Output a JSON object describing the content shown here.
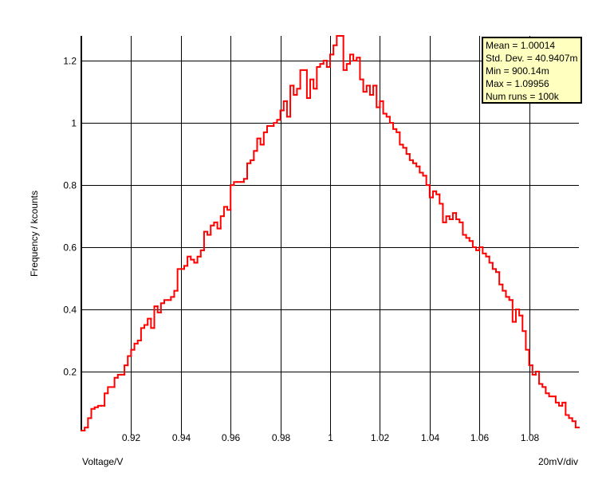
{
  "chart_data": {
    "type": "histogram",
    "xlabel": "Voltage/V",
    "ylabel": "Frequency / kcounts",
    "x_scale_note": "20mV/div",
    "xlim": [
      0.9,
      1.1
    ],
    "ylim": [
      0.01,
      1.28
    ],
    "grid": true,
    "x_ticks": [
      "0.92",
      "0.94",
      "0.96",
      "0.98",
      "1",
      "1.02",
      "1.04",
      "1.06",
      "1.08"
    ],
    "x_tick_values": [
      0.92,
      0.94,
      0.96,
      0.98,
      1.0,
      1.02,
      1.04,
      1.06,
      1.08
    ],
    "y_ticks": [
      "0.2",
      "0.4",
      "0.6",
      "0.8",
      "1",
      "1.2"
    ],
    "y_tick_values": [
      0.2,
      0.4,
      0.6,
      0.8,
      1.0,
      1.2
    ],
    "series_color": "#ff0000",
    "bin_start": 0.9,
    "bin_end": 1.1,
    "values": [
      0.01,
      0.02,
      0.05,
      0.08,
      0.085,
      0.09,
      0.09,
      0.13,
      0.15,
      0.15,
      0.18,
      0.19,
      0.19,
      0.22,
      0.25,
      0.27,
      0.29,
      0.3,
      0.34,
      0.35,
      0.37,
      0.34,
      0.41,
      0.39,
      0.42,
      0.43,
      0.43,
      0.44,
      0.46,
      0.53,
      0.53,
      0.54,
      0.57,
      0.56,
      0.55,
      0.57,
      0.59,
      0.65,
      0.64,
      0.67,
      0.68,
      0.66,
      0.7,
      0.73,
      0.72,
      0.8,
      0.81,
      0.81,
      0.81,
      0.82,
      0.87,
      0.88,
      0.91,
      0.95,
      0.93,
      0.97,
      0.99,
      0.99,
      1.0,
      1.01,
      1.04,
      1.07,
      1.02,
      1.12,
      1.09,
      1.11,
      1.17,
      1.17,
      1.08,
      1.14,
      1.11,
      1.18,
      1.19,
      1.2,
      1.18,
      1.22,
      1.25,
      1.28,
      1.28,
      1.17,
      1.19,
      1.22,
      1.2,
      1.21,
      1.14,
      1.1,
      1.12,
      1.09,
      1.12,
      1.05,
      1.07,
      1.03,
      1.02,
      1.0,
      0.98,
      0.97,
      0.93,
      0.92,
      0.9,
      0.88,
      0.87,
      0.86,
      0.84,
      0.83,
      0.8,
      0.76,
      0.78,
      0.77,
      0.74,
      0.68,
      0.7,
      0.69,
      0.71,
      0.69,
      0.68,
      0.64,
      0.63,
      0.62,
      0.6,
      0.59,
      0.6,
      0.58,
      0.57,
      0.55,
      0.53,
      0.52,
      0.48,
      0.46,
      0.44,
      0.43,
      0.36,
      0.4,
      0.38,
      0.33,
      0.27,
      0.22,
      0.19,
      0.2,
      0.16,
      0.15,
      0.13,
      0.12,
      0.12,
      0.1,
      0.09,
      0.1,
      0.06,
      0.05,
      0.04,
      0.02
    ]
  },
  "stats": {
    "mean": "Mean = 1.00014",
    "std": "Std. Dev. = 40.9407m",
    "min": "Min = 900.14m",
    "max": "Max = 1.09956",
    "runs": "Num runs = 100k"
  }
}
